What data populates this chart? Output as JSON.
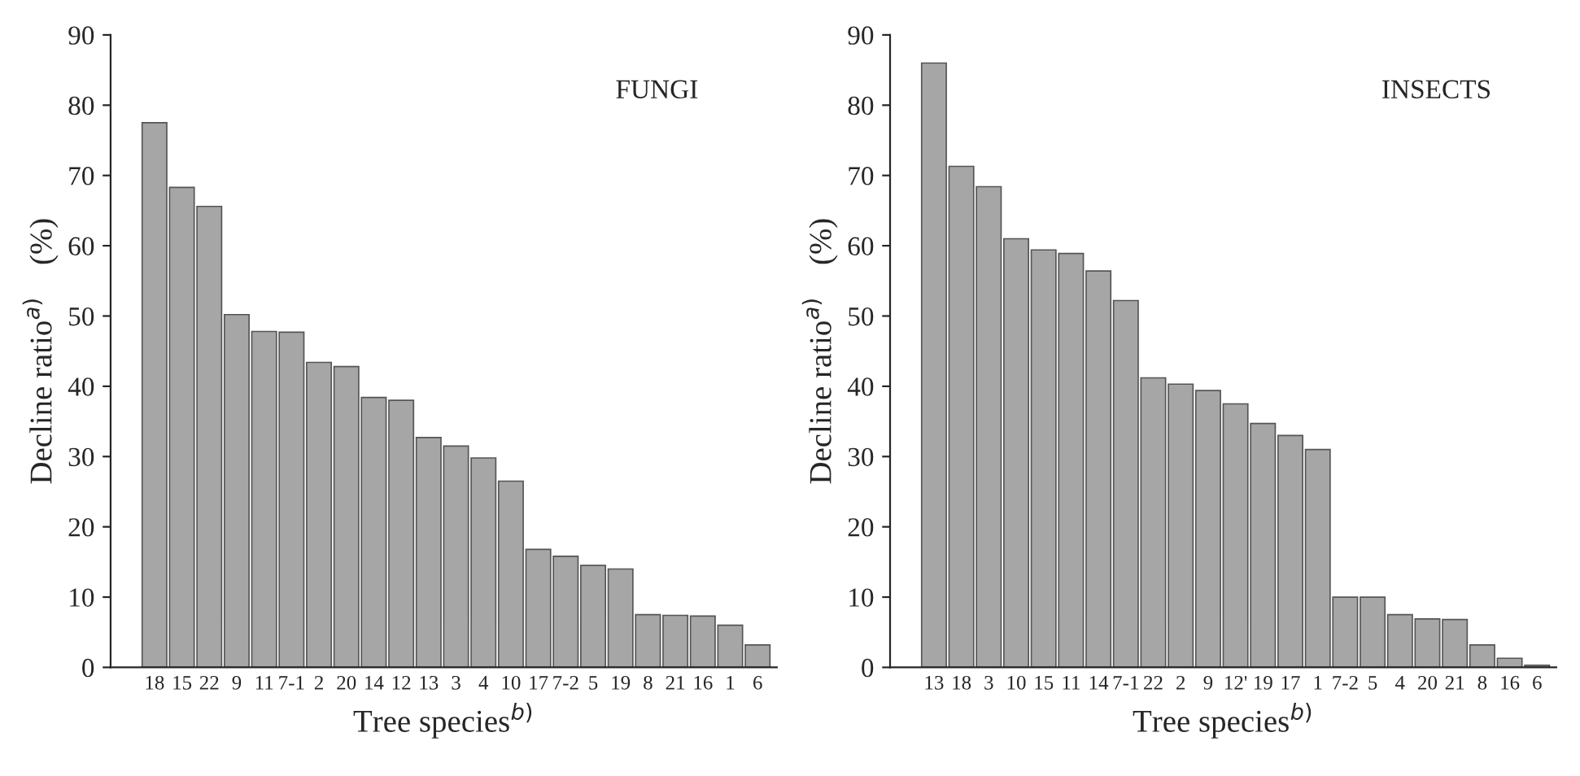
{
  "chart_data": [
    {
      "type": "bar",
      "annotations": [
        "FUNGI"
      ],
      "xlabel": "Tree species$^{b)}$",
      "ylabel": "Decline ratio$^{a)}$    (%)",
      "categories": [
        "18",
        "15",
        "22",
        "9",
        "11",
        "7-1",
        "2",
        "20",
        "14",
        "12",
        "13",
        "3",
        "4",
        "10",
        "17",
        "7-2",
        "5",
        "19",
        "8",
        "21",
        "16",
        "1",
        "6"
      ],
      "values": [
        77.5,
        68.3,
        65.6,
        50.2,
        47.8,
        47.7,
        43.4,
        42.8,
        38.4,
        38.0,
        32.7,
        31.5,
        29.8,
        26.5,
        16.8,
        15.8,
        14.5,
        14.0,
        7.5,
        7.4,
        7.3,
        6.0,
        3.2
      ],
      "color": "#a6a6a6",
      "ylim": [
        0,
        90
      ],
      "yticks": [
        0,
        10,
        20,
        30,
        40,
        50,
        60,
        70,
        80,
        90
      ],
      "grid": false,
      "legend": false
    },
    {
      "type": "bar",
      "annotations": [
        "INSECTS"
      ],
      "xlabel": "Tree species$^{b)}$",
      "ylabel": "Decline ratio$^{a)}$    (%)",
      "categories": [
        "13",
        "18",
        "3",
        "10",
        "15",
        "11",
        "14",
        "7-1",
        "22",
        "2",
        "9",
        "12'",
        "19",
        "17",
        "1",
        "7-2",
        "5",
        "4",
        "20",
        "21",
        "8",
        "16",
        "6"
      ],
      "values": [
        86,
        71.3,
        68.4,
        61,
        59.4,
        58.9,
        56.4,
        52.2,
        41.2,
        40.3,
        39.4,
        37.5,
        34.7,
        33,
        31,
        10,
        10,
        7.5,
        6.9,
        6.8,
        3.2,
        1.3,
        0.3
      ],
      "color": "#a6a6a6",
      "ylim": [
        0,
        90
      ],
      "yticks": [
        0,
        10,
        20,
        30,
        40,
        50,
        60,
        70,
        80,
        90
      ],
      "grid": false,
      "legend": false
    }
  ]
}
